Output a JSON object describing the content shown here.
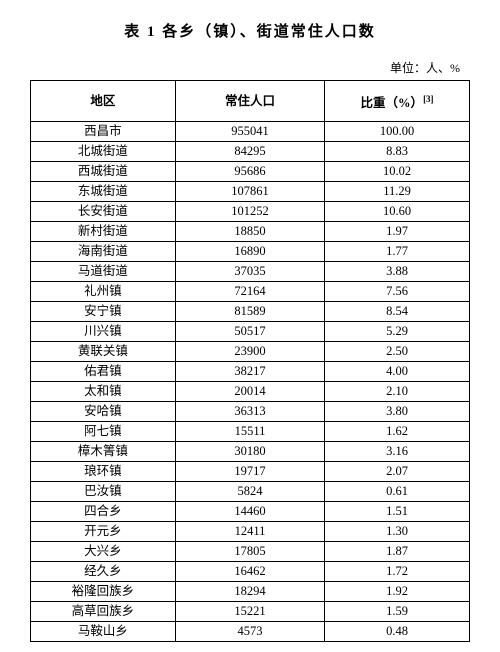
{
  "title": "表 1   各乡（镇）、街道常住人口数",
  "unit": "单位：人、%",
  "columns": [
    "地区",
    "常住人口",
    "比重（%）"
  ],
  "footnote_ref": "[3]",
  "rows": [
    [
      "西昌市",
      "955041",
      "100.00"
    ],
    [
      "北城街道",
      "84295",
      "8.83"
    ],
    [
      "西城街道",
      "95686",
      "10.02"
    ],
    [
      "东城街道",
      "107861",
      "11.29"
    ],
    [
      "长安街道",
      "101252",
      "10.60"
    ],
    [
      "新村街道",
      "18850",
      "1.97"
    ],
    [
      "海南街道",
      "16890",
      "1.77"
    ],
    [
      "马道街道",
      "37035",
      "3.88"
    ],
    [
      "礼州镇",
      "72164",
      "7.56"
    ],
    [
      "安宁镇",
      "81589",
      "8.54"
    ],
    [
      "川兴镇",
      "50517",
      "5.29"
    ],
    [
      "黄联关镇",
      "23900",
      "2.50"
    ],
    [
      "佑君镇",
      "38217",
      "4.00"
    ],
    [
      "太和镇",
      "20014",
      "2.10"
    ],
    [
      "安哈镇",
      "36313",
      "3.80"
    ],
    [
      "阿七镇",
      "15511",
      "1.62"
    ],
    [
      "樟木箐镇",
      "30180",
      "3.16"
    ],
    [
      "琅环镇",
      "19717",
      "2.07"
    ],
    [
      "巴汝镇",
      "5824",
      "0.61"
    ],
    [
      "四合乡",
      "14460",
      "1.51"
    ],
    [
      "开元乡",
      "12411",
      "1.30"
    ],
    [
      "大兴乡",
      "17805",
      "1.87"
    ],
    [
      "经久乡",
      "16462",
      "1.72"
    ],
    [
      "裕隆回族乡",
      "18294",
      "1.92"
    ],
    [
      "高草回族乡",
      "15221",
      "1.59"
    ],
    [
      "马鞍山乡",
      "4573",
      "0.48"
    ]
  ]
}
